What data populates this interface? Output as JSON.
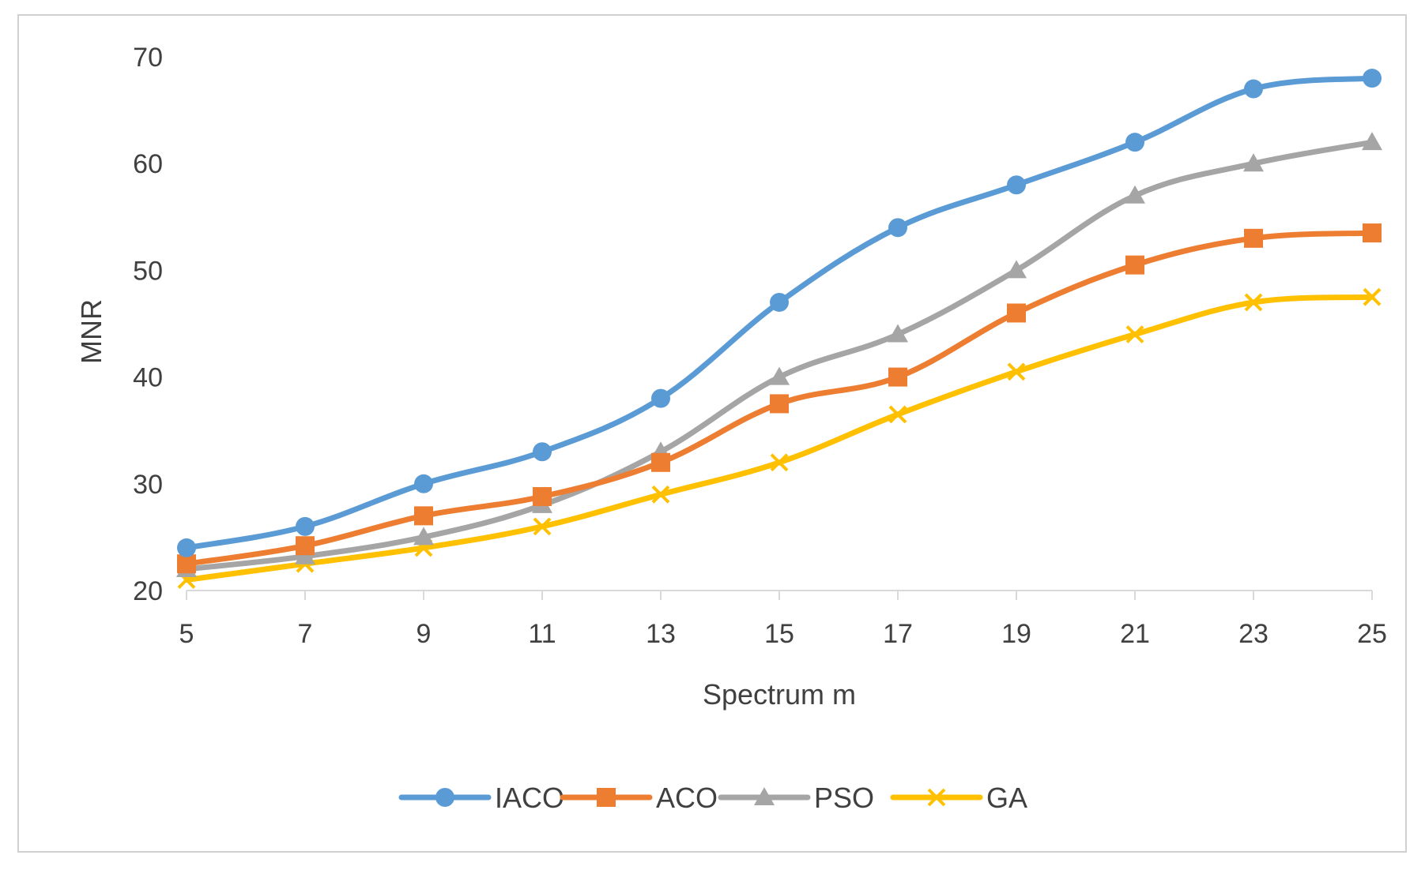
{
  "chart_data": {
    "type": "line",
    "title": "",
    "xlabel": "Spectrum m",
    "ylabel": "MNR",
    "x": [
      5,
      7,
      9,
      11,
      13,
      15,
      17,
      19,
      21,
      23,
      25
    ],
    "xticks": [
      "5",
      "7",
      "9",
      "11",
      "13",
      "15",
      "17",
      "19",
      "21",
      "23",
      "25"
    ],
    "ylim": [
      20,
      70
    ],
    "yticks": [
      20,
      30,
      40,
      50,
      60,
      70
    ],
    "grid": false,
    "legend_position": "bottom",
    "series": [
      {
        "name": "IACO",
        "color": "#5B9BD5",
        "marker": "circle",
        "values": [
          24,
          26,
          30,
          33,
          38,
          47,
          54,
          58,
          62,
          67,
          68
        ]
      },
      {
        "name": "ACO",
        "color": "#ED7D31",
        "marker": "square",
        "values": [
          22.5,
          24.2,
          27,
          28.8,
          32,
          37.5,
          40,
          46,
          50.5,
          53,
          53.5
        ]
      },
      {
        "name": "PSO",
        "color": "#A5A5A5",
        "marker": "triangle",
        "values": [
          22,
          23.2,
          25,
          28,
          33,
          40,
          44,
          50,
          57,
          60,
          62
        ]
      },
      {
        "name": "GA",
        "color": "#FFC000",
        "marker": "x",
        "values": [
          21,
          22.5,
          24,
          26,
          29,
          32,
          36.5,
          40.5,
          44,
          47,
          47.5
        ]
      }
    ]
  }
}
